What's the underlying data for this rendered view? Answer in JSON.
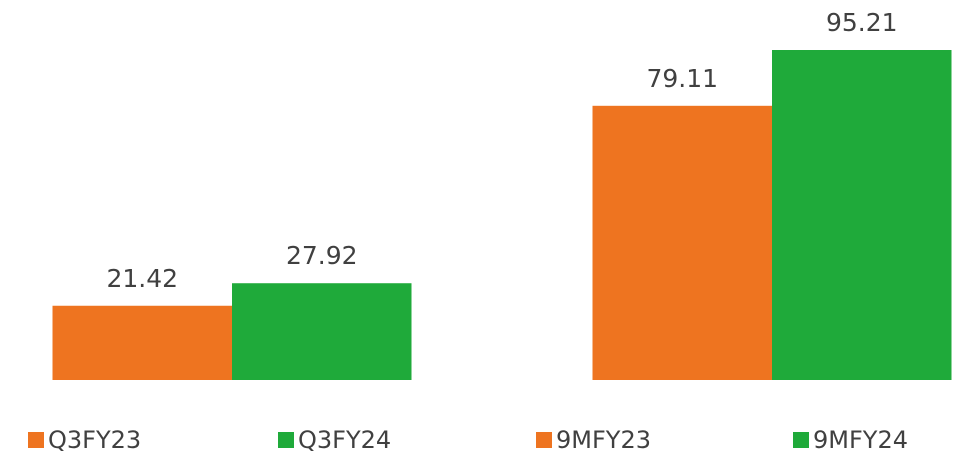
{
  "chart_data": {
    "type": "bar",
    "categories": [
      null,
      null
    ],
    "series": [
      {
        "name": "Q3FY23",
        "color": "#ee7420",
        "values": [
          21.42,
          null
        ]
      },
      {
        "name": "Q3FY24",
        "color": "#1faa3a",
        "values": [
          27.92,
          null
        ]
      },
      {
        "name": "9MFY23",
        "color": "#ee7420",
        "values": [
          null,
          79.11
        ]
      },
      {
        "name": "9MFY24",
        "color": "#1faa3a",
        "values": [
          null,
          95.21
        ]
      }
    ]
  }
}
